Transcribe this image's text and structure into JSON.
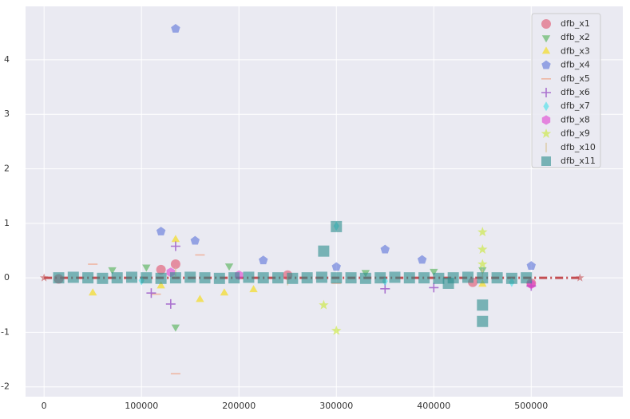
{
  "chart_data": {
    "type": "scatter",
    "xlim": [
      -19000,
      594000
    ],
    "ylim": [
      -2.18,
      4.98
    ],
    "xticks": [
      0,
      100000,
      200000,
      300000,
      400000,
      500000
    ],
    "yticks": [
      -2,
      -1,
      0,
      1,
      2,
      3,
      4
    ],
    "grid": true,
    "legend": "upper right",
    "reference_line": {
      "x": [
        0,
        550000
      ],
      "y": [
        0,
        0
      ],
      "color": "#c44e52"
    },
    "series": [
      {
        "name": "dfb_x1",
        "color": "#e0506a",
        "marker": "o",
        "x": [
          15000,
          120000,
          135000,
          440000,
          500000,
          250000
        ],
        "values": [
          -0.02,
          0.15,
          0.25,
          -0.08,
          -0.1,
          0.05
        ]
      },
      {
        "name": "dfb_x2",
        "color": "#4caf50",
        "marker": "v",
        "x": [
          70000,
          105000,
          135000,
          190000,
          400000,
          450000,
          330000
        ],
        "values": [
          0.15,
          0.2,
          -0.9,
          0.22,
          0.12,
          0.15,
          0.1
        ]
      },
      {
        "name": "dfb_x3",
        "color": "#f5d800",
        "marker": "^",
        "x": [
          50000,
          120000,
          135000,
          160000,
          185000,
          215000,
          450000
        ],
        "values": [
          -0.28,
          -0.15,
          0.7,
          -0.4,
          -0.28,
          -0.22,
          -0.12
        ]
      },
      {
        "name": "dfb_x4",
        "color": "#5a72d8",
        "marker": "p",
        "x": [
          120000,
          135000,
          155000,
          225000,
          300000,
          350000,
          388000,
          500000
        ],
        "values": [
          0.85,
          4.57,
          0.68,
          0.32,
          0.2,
          0.52,
          0.33,
          0.22
        ]
      },
      {
        "name": "dfb_x5",
        "color": "#f0a080",
        "marker": "_",
        "x": [
          50000,
          115000,
          135000,
          160000,
          300000
        ],
        "values": [
          0.25,
          -0.3,
          -1.76,
          0.42,
          -0.1
        ]
      },
      {
        "name": "dfb_x6",
        "color": "#9040c0",
        "marker": "+",
        "x": [
          110000,
          130000,
          135000,
          350000,
          400000,
          500000
        ],
        "values": [
          -0.28,
          -0.48,
          0.58,
          -0.2,
          -0.18,
          -0.15
        ]
      },
      {
        "name": "dfb_x7",
        "color": "#40e0e8",
        "marker": "d",
        "x": [
          100000,
          300000,
          350000,
          480000
        ],
        "values": [
          -0.05,
          0.95,
          -0.06,
          -0.08
        ]
      },
      {
        "name": "dfb_x8",
        "color": "#e040d0",
        "marker": "h",
        "x": [
          130000,
          200000,
          500000
        ],
        "values": [
          0.1,
          0.05,
          -0.12
        ]
      },
      {
        "name": "dfb_x9",
        "color": "#c8e830",
        "marker": "*",
        "x": [
          287000,
          300000,
          450000,
          450000,
          450000
        ],
        "values": [
          -0.5,
          -0.97,
          0.84,
          0.52,
          0.25
        ]
      },
      {
        "name": "dfb_x10",
        "color": "#d8c090",
        "marker": "|",
        "x": [
          135000,
          250000,
          450000
        ],
        "values": [
          0.1,
          -0.05,
          0.08
        ]
      },
      {
        "name": "dfb_x11",
        "color": "#2a8c8c",
        "marker": "s",
        "x": [
          15000,
          30000,
          45000,
          60000,
          75000,
          90000,
          105000,
          120000,
          135000,
          150000,
          165000,
          180000,
          195000,
          210000,
          225000,
          240000,
          255000,
          270000,
          285000,
          300000,
          315000,
          330000,
          345000,
          360000,
          375000,
          390000,
          405000,
          420000,
          435000,
          450000,
          465000,
          480000,
          495000,
          287000,
          300000,
          450000,
          450000,
          415000
        ],
        "values": [
          0,
          0.01,
          0,
          -0.01,
          0,
          0.01,
          0,
          -0.01,
          0,
          0.01,
          0,
          -0.01,
          0,
          0.01,
          0,
          0,
          -0.01,
          0,
          0.01,
          0,
          0,
          -0.01,
          0,
          0.01,
          0,
          0,
          -0.01,
          0,
          0.01,
          0,
          0,
          -0.01,
          0,
          0.49,
          0.94,
          -0.5,
          -0.8,
          -0.1
        ]
      }
    ]
  }
}
